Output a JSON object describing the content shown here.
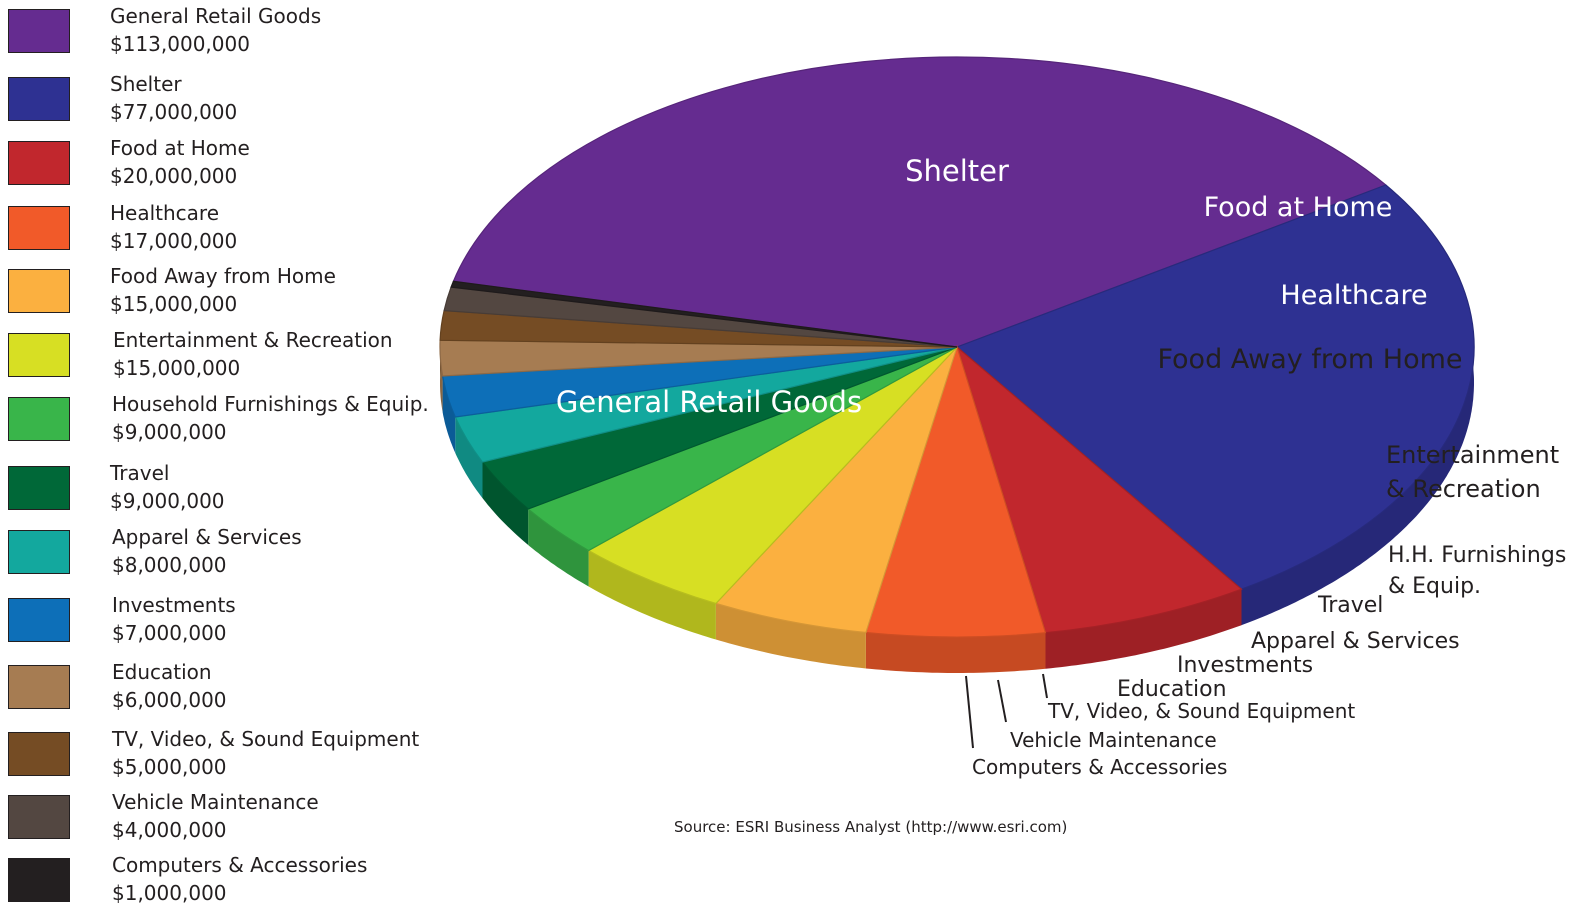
{
  "chart_data": {
    "type": "pie",
    "slices": [
      {
        "name": "General Retail Goods",
        "legend_value": "$113,000,000",
        "value": 113000000,
        "color": "#652c90",
        "label": "General Retail Goods"
      },
      {
        "name": "Shelter",
        "legend_value": "$77,000,000",
        "value": 77000000,
        "color": "#2e3192",
        "label": "Shelter"
      },
      {
        "name": "Food at Home",
        "legend_value": "$20,000,000",
        "value": 20000000,
        "color": "#c1272d",
        "label": "Food at Home"
      },
      {
        "name": "Healthcare",
        "legend_value": "$17,000,000",
        "value": 17000000,
        "color": "#f15a29",
        "label": "Healthcare"
      },
      {
        "name": "Food Away from Home",
        "legend_value": "$15,000,000",
        "value": 15000000,
        "color": "#fbb040",
        "label": "Food Away from Home"
      },
      {
        "name": "Entertainment & Recreation",
        "legend_value": "$15,000,000",
        "value": 15000000,
        "color": "#d7df23",
        "label": "Entertainment\n& Recreation"
      },
      {
        "name": "Household Furnishings & Equip.",
        "legend_value": "$9,000,000",
        "value": 9000000,
        "color": "#39b54a",
        "label": "H.H. Furnishings\n& Equip."
      },
      {
        "name": "Travel",
        "legend_value": "$9,000,000",
        "value": 9000000,
        "color": "#006838",
        "label": "Travel"
      },
      {
        "name": "Apparel & Services",
        "legend_value": "$8,000,000",
        "value": 8000000,
        "color": "#13a89e",
        "label": "Apparel & Services"
      },
      {
        "name": "Investments",
        "legend_value": "$7,000,000",
        "value": 7000000,
        "color": "#0d6fb8",
        "label": "Investments"
      },
      {
        "name": "Education",
        "legend_value": "$6,000,000",
        "value": 6000000,
        "color": "#a67c52",
        "label": "Education"
      },
      {
        "name": "TV, Video, & Sound Equipment",
        "legend_value": "$5,000,000",
        "value": 5000000,
        "color": "#754c24",
        "label": "TV, Video, & Sound Equipment"
      },
      {
        "name": "Vehicle Maintenance",
        "legend_value": "$4,000,000",
        "value": 4000000,
        "color": "#534741",
        "label": "Vehicle Maintenance"
      },
      {
        "name": "Computers & Accessories",
        "legend_value": "$1,000,000",
        "value": 1000000,
        "color": "#231f20",
        "label": "Computers & Accessories"
      }
    ],
    "legend_position": "left",
    "source": "Source: ESRI Business Analyst (http://www.esri.com)"
  }
}
